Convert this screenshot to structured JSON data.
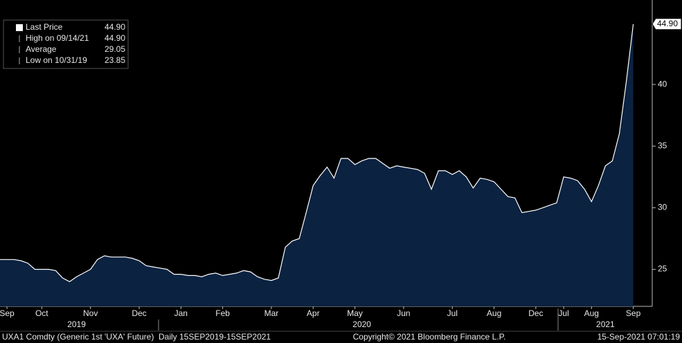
{
  "chart_data": {
    "type": "area",
    "series": [
      {
        "name": "Last Price",
        "color": "#ffffff",
        "fill": "#0b2241",
        "values": [
          25.8,
          25.8,
          25.8,
          25.7,
          25.5,
          25.0,
          25.0,
          25.0,
          24.9,
          24.3,
          24.0,
          24.4,
          24.7,
          25.0,
          25.8,
          26.1,
          26.0,
          26.0,
          26.0,
          25.9,
          25.7,
          25.3,
          25.2,
          25.1,
          25.0,
          24.6,
          24.6,
          24.5,
          24.5,
          24.4,
          24.6,
          24.7,
          24.5,
          24.6,
          24.7,
          24.9,
          24.8,
          24.4,
          24.2,
          24.1,
          24.3,
          26.8,
          27.3,
          27.5,
          29.6,
          31.8,
          32.6,
          33.3,
          32.4,
          34.0,
          34.0,
          33.5,
          33.8,
          34.0,
          34.0,
          33.6,
          33.2,
          33.4,
          33.3,
          33.2,
          33.1,
          32.8,
          31.5,
          33.0,
          33.0,
          32.7,
          33.0,
          32.5,
          31.6,
          32.4,
          32.3,
          32.1,
          31.5,
          30.9,
          30.8,
          29.6,
          29.7,
          29.8,
          30.0,
          30.2,
          30.4,
          32.5,
          32.4,
          32.2,
          31.5,
          30.5,
          31.8,
          33.4,
          33.8,
          36.0,
          40.2,
          44.9
        ]
      }
    ],
    "categories": [
      null,
      "Sep",
      null,
      null,
      null,
      null,
      "Oct",
      null,
      null,
      null,
      null,
      null,
      null,
      "Nov",
      null,
      null,
      null,
      null,
      null,
      null,
      "Dec",
      null,
      null,
      null,
      null,
      null,
      "Jan",
      null,
      null,
      null,
      null,
      null,
      "Feb",
      null,
      null,
      null,
      null,
      null,
      null,
      "Mar",
      null,
      null,
      null,
      null,
      null,
      "Apr",
      null,
      null,
      null,
      null,
      null,
      "May",
      null,
      null,
      null,
      null,
      null,
      null,
      "Jun",
      null,
      null,
      null,
      null,
      null,
      null,
      "Jul",
      null,
      null,
      null,
      null,
      null,
      "Aug",
      null,
      null,
      null,
      null,
      null,
      "Dec",
      null,
      null,
      null,
      "Jul",
      null,
      null,
      null,
      "Aug",
      null,
      null,
      null,
      null,
      null,
      "Sep"
    ],
    "year_categories": [
      null,
      null,
      null,
      null,
      null,
      null,
      null,
      null,
      null,
      null,
      null,
      "2019",
      null,
      null,
      null,
      null,
      null,
      null,
      null,
      null,
      null,
      null,
      null,
      null,
      null,
      null,
      null,
      null,
      null,
      null,
      null,
      null,
      null,
      null,
      null,
      null,
      null,
      null,
      null,
      null,
      null,
      null,
      null,
      null,
      null,
      null,
      null,
      null,
      null,
      null,
      null,
      null,
      "2020",
      null,
      null,
      null,
      null,
      null,
      null,
      null,
      null,
      null,
      null,
      null,
      null,
      null,
      null,
      null,
      null,
      null,
      null,
      null,
      null,
      null,
      null,
      null,
      null,
      null,
      null,
      null,
      null,
      null,
      null,
      null,
      null,
      null,
      null,
      "2021",
      null,
      null,
      null,
      null
    ],
    "ylim": [
      22,
      46.85
    ],
    "yticks": [
      25,
      30,
      35,
      40
    ],
    "last_label": "44.90",
    "legend": [
      {
        "label": "Last Price",
        "value": "44.90"
      },
      {
        "label": "High on 09/14/21",
        "value": "44.90"
      },
      {
        "label": "Average",
        "value": "29.05"
      },
      {
        "label": "Low on 10/31/19",
        "value": "23.85"
      }
    ],
    "footer": {
      "left": "UXA1 Comdty (Generic 1st 'UXA' Future)  Daily 15SEP2019-15SEP2021",
      "center": "Copyright© 2021 Bloomberg Finance L.P.",
      "right": "15-Sep-2021 07:01:19"
    }
  }
}
